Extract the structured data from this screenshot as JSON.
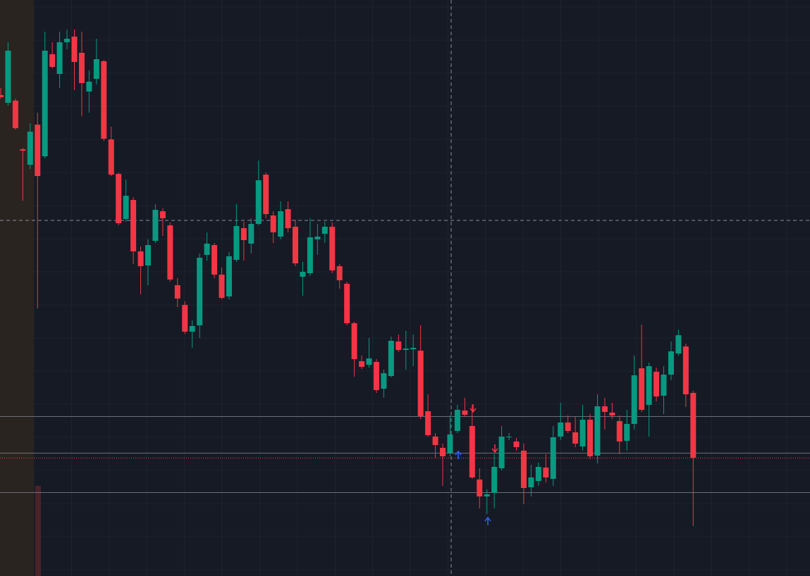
{
  "chart_data": {
    "type": "candlestick",
    "up_color": "#089981",
    "down_color": "#f23645",
    "ylim": [
      0,
      818
    ],
    "levels": [
      227,
      175,
      119
    ],
    "last_price": 168,
    "open": [
      683,
      672,
      675,
      606,
      584,
      641,
      596,
      741,
      713,
      758,
      766,
      743,
      688,
      706,
      731,
      620,
      571,
      507,
      534,
      461,
      441,
      476,
      518,
      498,
      413,
      385,
      347,
      356,
      456,
      470,
      428,
      397,
      449,
      494,
      472,
      500,
      570,
      512,
      482,
      521,
      496,
      425,
      430,
      478,
      486,
      496,
      440,
      415,
      359,
      305,
      300,
      304,
      266,
      284,
      333,
      321,
      322,
      320,
      234,
      198,
      182,
      175,
      206,
      235,
      213,
      137,
      113,
      118,
      153,
      197,
      191,
      178,
      126,
      135,
      154,
      138,
      198,
      218,
      204,
      184,
      222,
      171,
      241,
      232,
      220,
      192,
      216,
      295,
      243,
      290,
      256,
      286,
      316,
      326,
      260
    ],
    "high": [
      693,
      758,
      678,
      608,
      643,
      658,
      773,
      758,
      773,
      776,
      776,
      773,
      718,
      763,
      733,
      638,
      573,
      563,
      538,
      468,
      478,
      528,
      522,
      502,
      423,
      390,
      363,
      458,
      488,
      473,
      438,
      460,
      528,
      503,
      508,
      590,
      573,
      518,
      532,
      532,
      506,
      446,
      508,
      500,
      503,
      502,
      443,
      418,
      361,
      313,
      338,
      308,
      293,
      340,
      343,
      348,
      343,
      356,
      258,
      203,
      188,
      228,
      243,
      253,
      243,
      153,
      123,
      173,
      213,
      203,
      196,
      188,
      158,
      161,
      173,
      213,
      246,
      228,
      226,
      243,
      230,
      258,
      253,
      246,
      228,
      236,
      313,
      357,
      303,
      296,
      298,
      333,
      350,
      330,
      263
    ],
    "low": [
      678,
      668,
      634,
      533,
      578,
      380,
      593,
      721,
      693,
      748,
      690,
      653,
      658,
      698,
      618,
      568,
      498,
      503,
      443,
      400,
      413,
      473,
      483,
      418,
      382,
      344,
      324,
      338,
      448,
      423,
      393,
      393,
      446,
      448,
      458,
      498,
      508,
      473,
      478,
      488,
      440,
      398,
      426,
      456,
      473,
      430,
      408,
      356,
      283,
      294,
      296,
      260,
      253,
      282,
      318,
      293,
      298,
      223,
      198,
      168,
      128,
      170,
      203,
      226,
      138,
      96,
      88,
      96,
      150,
      193,
      178,
      102,
      113,
      128,
      133,
      128,
      193,
      203,
      183,
      178,
      166,
      160,
      208,
      223,
      173,
      178,
      208,
      233,
      198,
      248,
      230,
      278,
      313,
      240,
      71
    ],
    "close": [
      680,
      746,
      636,
      604,
      631,
      568,
      746,
      723,
      758,
      763,
      730,
      700,
      702,
      734,
      621,
      570,
      501,
      540,
      461,
      440,
      470,
      520,
      508,
      421,
      394,
      347,
      355,
      452,
      472,
      428,
      395,
      454,
      497,
      477,
      500,
      562,
      514,
      488,
      518,
      494,
      444,
      432,
      481,
      482,
      496,
      434,
      420,
      359,
      308,
      297,
      309,
      264,
      288,
      334,
      321,
      323,
      324,
      227,
      200,
      186,
      170,
      201,
      236,
      229,
      140,
      113,
      116,
      155,
      198,
      198,
      183,
      125,
      140,
      155,
      140,
      197,
      218,
      206,
      188,
      222,
      170,
      241,
      233,
      228,
      191,
      216,
      285,
      236,
      298,
      255,
      286,
      319,
      342,
      258,
      168
    ]
  }
}
